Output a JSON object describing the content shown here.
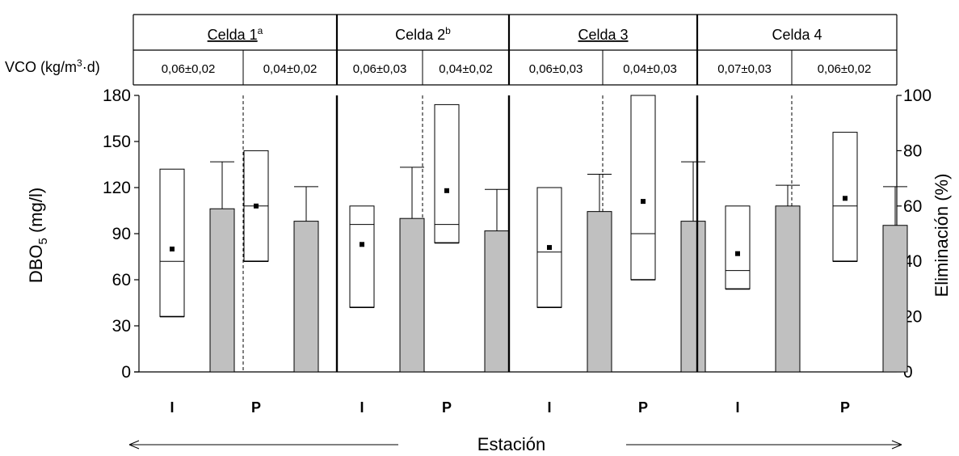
{
  "chart_data": {
    "type": "box",
    "vco_label_prefix": "VCO (kg/m",
    "vco_label_sup": "3",
    "vco_label_suffix": "·d)",
    "ylabel_left_main": "DBO",
    "ylabel_left_sub": "5",
    "ylabel_left_unit": " (mg/l)",
    "ylabel_right": "Eliminación (%)",
    "xlabel": "Estación",
    "ylim_left": [
      0,
      180
    ],
    "yticks_left": [
      "0",
      "30",
      "60",
      "90",
      "120",
      "150",
      "180"
    ],
    "ylim_right": [
      0,
      100
    ],
    "yticks_right": [
      "0",
      "20",
      "40",
      "60",
      "80",
      "100"
    ],
    "cells": [
      {
        "name": "Celda 1",
        "sup": "a",
        "underline": true,
        "groups": [
          {
            "station": "I",
            "vco": "0,06±0,02",
            "box": {
              "min": 36,
              "q1": 36,
              "median": 72,
              "q3": 132,
              "max": 132,
              "mean": 80
            },
            "removal": {
              "mean": 59,
              "max": 76
            }
          },
          {
            "station": "P",
            "vco": "0,04±0,02",
            "box": {
              "min": 72,
              "q1": 72,
              "median": 108,
              "q3": 144,
              "max": 144,
              "mean": 108
            },
            "removal": {
              "mean": 54.5,
              "max": 67
            }
          }
        ]
      },
      {
        "name": "Celda 2",
        "sup": "b",
        "underline": false,
        "groups": [
          {
            "station": "I",
            "vco": "0,06±0,03",
            "box": {
              "min": 42,
              "q1": 42,
              "median": 96,
              "q3": 108,
              "max": 108,
              "mean": 83
            },
            "removal": {
              "mean": 55.5,
              "max": 74
            }
          },
          {
            "station": "P",
            "vco": "0,04±0,02",
            "box": {
              "min": 84,
              "q1": 84,
              "median": 96,
              "q3": 174,
              "max": 174,
              "mean": 118
            },
            "removal": {
              "mean": 51,
              "max": 66
            }
          }
        ]
      },
      {
        "name": "Celda 3",
        "sup": "",
        "underline": true,
        "groups": [
          {
            "station": "I",
            "vco": "0,06±0,03",
            "box": {
              "min": 42,
              "q1": 42,
              "median": 78,
              "q3": 120,
              "max": 120,
              "mean": 81
            },
            "removal": {
              "mean": 58,
              "max": 71.5
            }
          },
          {
            "station": "P",
            "vco": "0,04±0,03",
            "box": {
              "min": 60,
              "q1": 60,
              "median": 90,
              "q3": 180,
              "max": 180,
              "mean": 111
            },
            "removal": {
              "mean": 54.5,
              "max": 76
            }
          }
        ]
      },
      {
        "name": "Celda 4",
        "sup": "",
        "underline": false,
        "groups": [
          {
            "station": "I",
            "vco": "0,07±0,03",
            "box": {
              "min": 54,
              "q1": 54,
              "median": 66,
              "q3": 108,
              "max": 108,
              "mean": 77
            },
            "removal": {
              "mean": 60,
              "max": 67.5
            }
          },
          {
            "station": "P",
            "vco": "0,06±0,02",
            "box": {
              "min": 72,
              "q1": 72,
              "median": 108,
              "q3": 156,
              "max": 156,
              "mean": 113
            },
            "removal": {
              "mean": 53,
              "max": 67
            }
          }
        ]
      }
    ]
  }
}
